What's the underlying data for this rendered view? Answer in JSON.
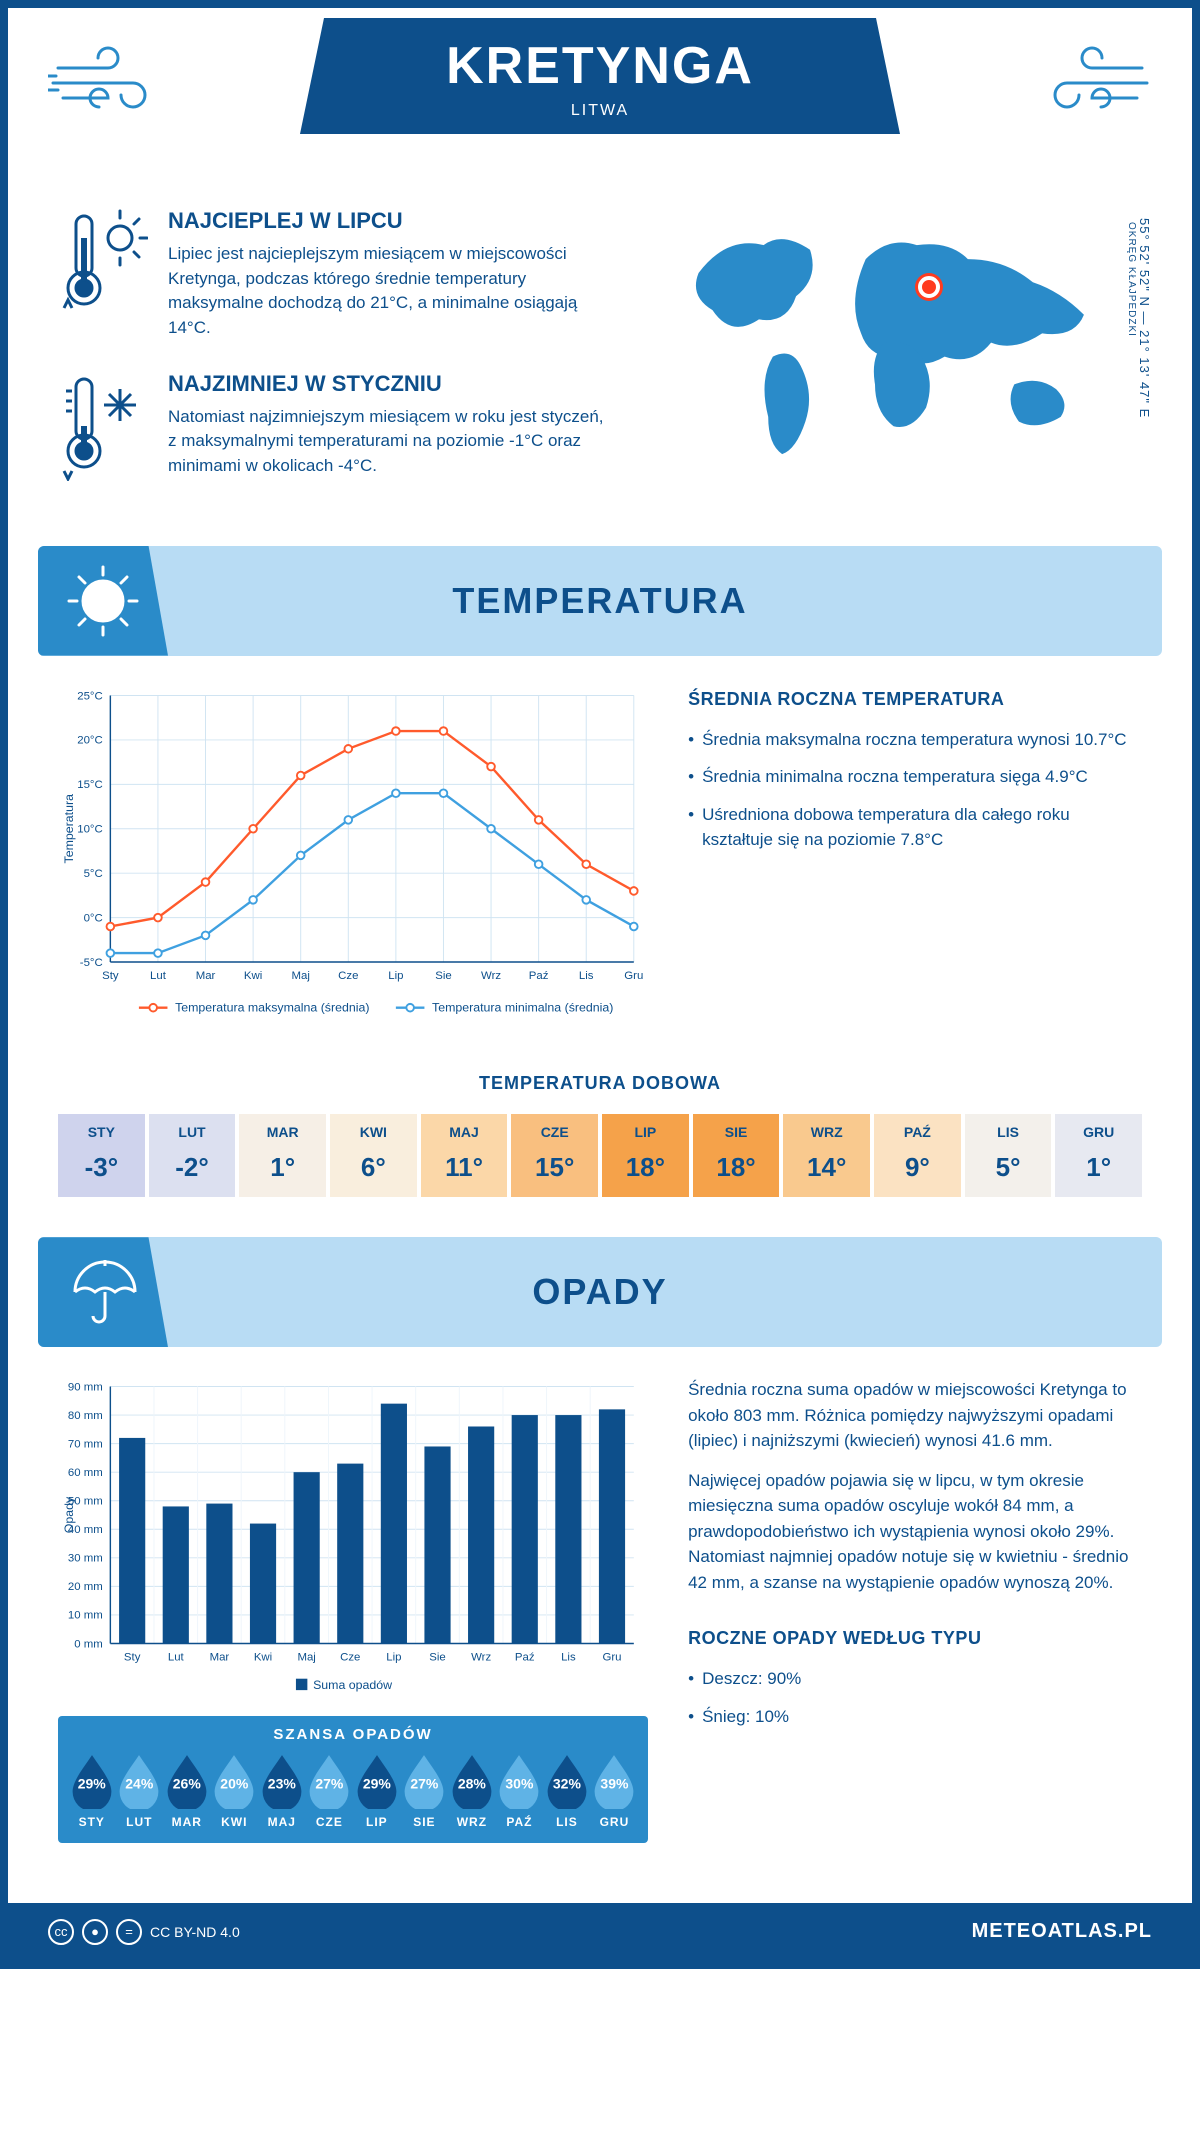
{
  "header": {
    "title": "KRETYNGA",
    "subtitle": "LITWA"
  },
  "coords": {
    "main": "55° 52' 52\" N — 21° 13' 47\" E",
    "sub": "OKRĘG KŁAJPEDZKI"
  },
  "marker": {
    "left_pct": 55,
    "top_pct": 26
  },
  "facts": {
    "hot": {
      "title": "NAJCIEPLEJ W LIPCU",
      "text": "Lipiec jest najcieplejszym miesiącem w miejscowości Kretynga, podczas którego średnie temperatury maksymalne dochodzą do 21°C, a minimalne osiągają 14°C."
    },
    "cold": {
      "title": "NAJZIMNIEJ W STYCZNIU",
      "text": "Natomiast najzimniejszym miesiącem w roku jest styczeń, z maksymalnymi temperaturami na poziomie -1°C oraz minimami w okolicach -4°C."
    }
  },
  "months": [
    "Sty",
    "Lut",
    "Mar",
    "Kwi",
    "Maj",
    "Cze",
    "Lip",
    "Sie",
    "Wrz",
    "Paź",
    "Lis",
    "Gru"
  ],
  "months_upper": [
    "STY",
    "LUT",
    "MAR",
    "KWI",
    "MAJ",
    "CZE",
    "LIP",
    "SIE",
    "WRZ",
    "PAŹ",
    "LIS",
    "GRU"
  ],
  "temp_section": {
    "banner": "TEMPERATURA",
    "chart": {
      "type": "line",
      "ylabel": "Temperatura",
      "ymin": -5,
      "ymax": 25,
      "ystep": 5,
      "max_series": {
        "label": "Temperatura maksymalna (średnia)",
        "color": "#ff5a2c",
        "values": [
          -1,
          0,
          4,
          10,
          16,
          19,
          21,
          21,
          17,
          11,
          6,
          3
        ]
      },
      "min_series": {
        "label": "Temperatura minimalna (średnia)",
        "color": "#3fa0e0",
        "values": [
          -4,
          -4,
          -2,
          2,
          7,
          11,
          14,
          14,
          10,
          6,
          2,
          -1
        ]
      }
    },
    "summary": {
      "title": "ŚREDNIA ROCZNA TEMPERATURA",
      "bullets": [
        "Średnia maksymalna roczna temperatura wynosi 10.7°C",
        "Średnia minimalna roczna temperatura sięga 4.9°C",
        "Uśredniona dobowa temperatura dla całego roku kształtuje się na poziomie 7.8°C"
      ]
    },
    "daily": {
      "title": "TEMPERATURA DOBOWA",
      "values": [
        -3,
        -2,
        1,
        6,
        11,
        15,
        18,
        18,
        14,
        9,
        5,
        1
      ],
      "colors": [
        "#cfd3ed",
        "#dce0f0",
        "#f6efe6",
        "#f9eedd",
        "#fbd7a8",
        "#f9bf7f",
        "#f5a24a",
        "#f5a24a",
        "#f9c98e",
        "#fbe2c2",
        "#f3f0eb",
        "#e7e9f1"
      ]
    }
  },
  "precip_section": {
    "banner": "OPADY",
    "chart": {
      "type": "bar",
      "ylabel": "Opady",
      "ymin": 0,
      "ymax": 90,
      "ystep": 10,
      "color": "#0d4f8b",
      "legend": "Suma opadów",
      "values": [
        72,
        48,
        49,
        42,
        60,
        63,
        84,
        69,
        76,
        80,
        80,
        82
      ]
    },
    "para1": "Średnia roczna suma opadów w miejscowości Kretynga to około 803 mm. Różnica pomiędzy najwyższymi opadami (lipiec) i najniższymi (kwiecień) wynosi 41.6 mm.",
    "para2": "Najwięcej opadów pojawia się w lipcu, w tym okresie miesięczna suma opadów oscyluje wokół 84 mm, a prawdopodobieństwo ich wystąpienia wynosi około 29%. Natomiast najmniej opadów notuje się w kwietniu - średnio 42 mm, a szanse na wystąpienie opadów wynoszą 20%.",
    "chance": {
      "title": "SZANSA OPADÓW",
      "values": [
        29,
        24,
        26,
        20,
        23,
        27,
        29,
        27,
        28,
        30,
        32,
        39
      ],
      "dark": "#0d4f8b",
      "light": "#5fb3e6"
    },
    "by_type": {
      "title": "ROCZNE OPADY WEDŁUG TYPU",
      "items": [
        "Deszcz: 90%",
        "Śnieg: 10%"
      ]
    }
  },
  "footer": {
    "license": "CC BY-ND 4.0",
    "brand": "METEOATLAS.PL"
  }
}
